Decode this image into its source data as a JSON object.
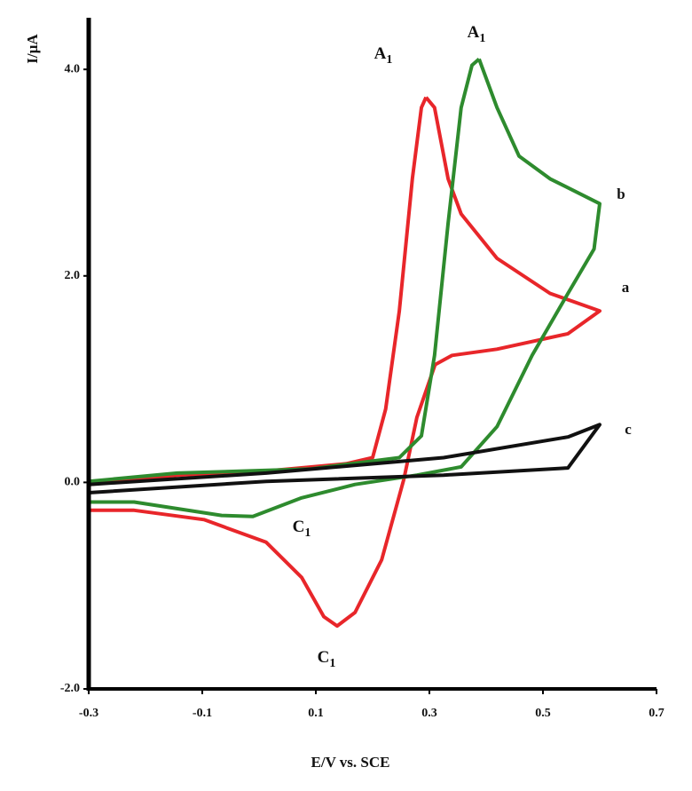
{
  "chart_data": {
    "type": "line",
    "xlabel": "E/V vs. SCE",
    "ylabel": "I/µA",
    "xlim": [
      -0.3,
      0.7
    ],
    "ylim": [
      -2,
      4.5
    ],
    "xticks": [
      -0.3,
      -0.1,
      0.1,
      0.3,
      0.5,
      0.7
    ],
    "yticks": [
      {
        "value": -2,
        "label": "-2.0"
      },
      {
        "value": 0,
        "label": "0.0"
      },
      {
        "value": 2,
        "label": "2.0"
      },
      {
        "value": 4,
        "label": "4.0"
      }
    ],
    "series": [
      {
        "name": "a",
        "color": "#e8262a",
        "x": [
          0.294,
          0.309,
          0.333,
          0.356,
          0.419,
          0.5125,
          0.6,
          0.544,
          0.419,
          0.34,
          0.31,
          0.278,
          0.255,
          0.216,
          0.169,
          0.1375,
          0.114,
          0.075,
          0.0125,
          -0.097,
          -0.22,
          -0.3,
          -0.3,
          -0.144,
          0.0125,
          0.153,
          0.2,
          0.223,
          0.247,
          0.27,
          0.286,
          0.294
        ],
        "y": [
          3.73,
          3.63,
          2.94,
          2.6,
          2.17,
          1.83,
          1.66,
          1.44,
          1.29,
          1.23,
          1.14,
          0.63,
          0.03,
          -0.75,
          -1.26,
          -1.39,
          -1.3,
          -0.92,
          -0.58,
          -0.36,
          -0.27,
          -0.27,
          -0.02,
          0.07,
          0.11,
          0.18,
          0.24,
          0.71,
          1.66,
          2.94,
          3.63,
          3.73
        ]
      },
      {
        "name": "b",
        "color": "#2e8b2e",
        "x": [
          0.3875,
          0.419,
          0.458,
          0.5125,
          0.6,
          0.59,
          0.544,
          0.481,
          0.419,
          0.356,
          0.278,
          0.169,
          0.075,
          -0.011,
          -0.066,
          -0.22,
          -0.3,
          -0.3,
          -0.144,
          0.09,
          0.247,
          0.286,
          0.309,
          0.333,
          0.356,
          0.375,
          0.3875
        ],
        "y": [
          4.1,
          3.63,
          3.16,
          2.94,
          2.7,
          2.26,
          1.83,
          1.23,
          0.54,
          0.15,
          0.07,
          -0.02,
          -0.15,
          -0.33,
          -0.32,
          -0.19,
          -0.19,
          0.01,
          0.09,
          0.13,
          0.24,
          0.45,
          1.23,
          2.51,
          3.63,
          4.04,
          4.1
        ]
      },
      {
        "name": "c",
        "color": "#111111",
        "x": [
          -0.3,
          0.0125,
          0.325,
          0.544,
          0.6,
          0.544,
          0.325,
          0.0125,
          -0.3,
          -0.3
        ],
        "y": [
          -0.02,
          0.09,
          0.24,
          0.44,
          0.56,
          0.14,
          0.07,
          0.01,
          -0.1,
          -0.02
        ]
      }
    ],
    "annotations": [
      {
        "text": "A",
        "sub": "1"
      },
      {
        "text": "A",
        "sub": "1"
      },
      {
        "text": "C",
        "sub": "1"
      },
      {
        "text": "C",
        "sub": "1"
      }
    ]
  }
}
